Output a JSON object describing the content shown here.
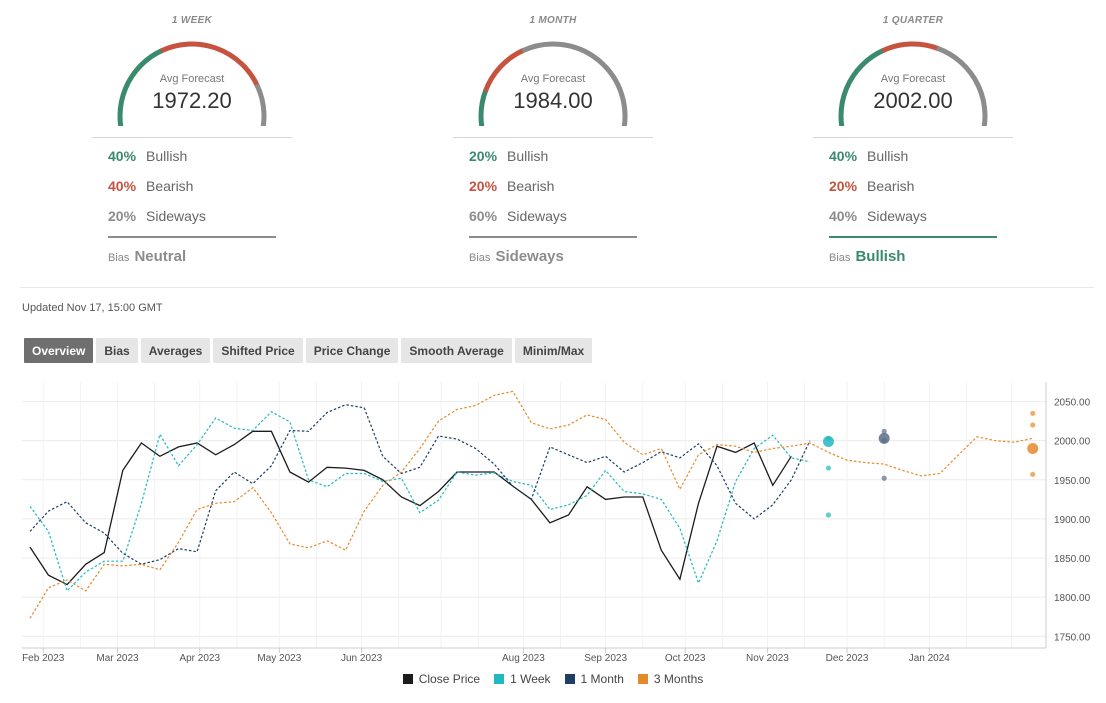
{
  "forecast_panels": [
    {
      "period": "1 WEEK",
      "avg_label": "Avg Forecast",
      "avg_value": "1972.20",
      "bullish_pct": "40%",
      "bullish_label": "Bullish",
      "bearish_pct": "40%",
      "bearish_label": "Bearish",
      "sideways_pct": "20%",
      "sideways_label": "Sideways",
      "bias_label": "Bias",
      "bias_value": "Neutral",
      "bias_color": "#8c8c8c",
      "gauge_fractions": {
        "bullish": 0.4,
        "bearish": 0.4,
        "sideways": 0.2
      }
    },
    {
      "period": "1 MONTH",
      "avg_label": "Avg Forecast",
      "avg_value": "1984.00",
      "bullish_pct": "20%",
      "bullish_label": "Bullish",
      "bearish_pct": "20%",
      "bearish_label": "Bearish",
      "sideways_pct": "60%",
      "sideways_label": "Sideways",
      "bias_label": "Bias",
      "bias_value": "Sideways",
      "bias_color": "#8c8c8c",
      "gauge_fractions": {
        "bullish": 0.2,
        "bearish": 0.2,
        "sideways": 0.6
      }
    },
    {
      "period": "1 QUARTER",
      "avg_label": "Avg Forecast",
      "avg_value": "2002.00",
      "bullish_pct": "40%",
      "bullish_label": "Bullish",
      "bearish_pct": "20%",
      "bearish_label": "Bearish",
      "sideways_pct": "40%",
      "sideways_label": "Sideways",
      "bias_label": "Bias",
      "bias_value": "Bullish",
      "bias_color": "#3a8a6e",
      "gauge_fractions": {
        "bullish": 0.4,
        "bearish": 0.2,
        "sideways": 0.4
      }
    }
  ],
  "colors": {
    "bullish": "#3a8a6e",
    "bearish": "#c5533f",
    "sideways": "#8c8c8c"
  },
  "updated": "Updated Nov 17, 15:00 GMT",
  "tabs": [
    {
      "label": "Overview",
      "active": true
    },
    {
      "label": "Bias",
      "active": false
    },
    {
      "label": "Averages",
      "active": false
    },
    {
      "label": "Shifted Price",
      "active": false
    },
    {
      "label": "Price Change",
      "active": false
    },
    {
      "label": "Smooth Average",
      "active": false
    },
    {
      "label": "Minim/Max",
      "active": false
    }
  ],
  "chart_data": {
    "type": "line",
    "x_tick_labels": [
      "Feb 2023",
      "Mar 2023",
      "Apr 2023",
      "May 2023",
      "Jun 2023",
      "Aug 2023",
      "Sep 2023",
      "Oct 2023",
      "Nov 2023",
      "Dec 2023",
      "Jan 2024"
    ],
    "y_ticks": [
      1750,
      1800,
      1850,
      1900,
      1950,
      2000,
      2050
    ],
    "ylim": [
      1735,
      2075
    ],
    "grid": true,
    "legend_position": "bottom",
    "series": [
      {
        "name": "Close Price",
        "color": "#1c1c1c",
        "dash": "solid",
        "points": [
          [
            "2023-01-27",
            1864
          ],
          [
            "2023-02-03",
            1828
          ],
          [
            "2023-02-10",
            1816
          ],
          [
            "2023-02-17",
            1842
          ],
          [
            "2023-02-24",
            1857
          ],
          [
            "2023-03-03",
            1962
          ],
          [
            "2023-03-10",
            1997
          ],
          [
            "2023-03-17",
            1980
          ],
          [
            "2023-03-24",
            1992
          ],
          [
            "2023-03-31",
            1997
          ],
          [
            "2023-04-07",
            1982
          ],
          [
            "2023-04-14",
            1995
          ],
          [
            "2023-04-21",
            2012
          ],
          [
            "2023-04-28",
            2012
          ],
          [
            "2023-05-05",
            1960
          ],
          [
            "2023-05-12",
            1947
          ],
          [
            "2023-05-19",
            1966
          ],
          [
            "2023-05-26",
            1965
          ],
          [
            "2023-06-02",
            1962
          ],
          [
            "2023-06-09",
            1950
          ],
          [
            "2023-06-16",
            1928
          ],
          [
            "2023-06-23",
            1917
          ],
          [
            "2023-06-30",
            1935
          ],
          [
            "2023-07-07",
            1960
          ],
          [
            "2023-07-14",
            1960
          ],
          [
            "2023-07-21",
            1960
          ],
          [
            "2023-07-28",
            1942
          ],
          [
            "2023-08-04",
            1925
          ],
          [
            "2023-08-11",
            1895
          ],
          [
            "2023-08-18",
            1905
          ],
          [
            "2023-08-25",
            1941
          ],
          [
            "2023-09-01",
            1925
          ],
          [
            "2023-09-08",
            1928
          ],
          [
            "2023-09-15",
            1928
          ],
          [
            "2023-09-22",
            1860
          ],
          [
            "2023-09-29",
            1823
          ],
          [
            "2023-10-06",
            1920
          ],
          [
            "2023-10-13",
            1993
          ],
          [
            "2023-10-20",
            1985
          ],
          [
            "2023-10-27",
            1997
          ],
          [
            "2023-11-03",
            1943
          ],
          [
            "2023-11-10",
            1980
          ]
        ]
      },
      {
        "name": "1 Week",
        "color": "#21b8c0",
        "dash": "dashed",
        "points": [
          [
            "2023-01-27",
            1916
          ],
          [
            "2023-02-03",
            1884
          ],
          [
            "2023-02-10",
            1808
          ],
          [
            "2023-02-17",
            1832
          ],
          [
            "2023-02-24",
            1846
          ],
          [
            "2023-03-03",
            1846
          ],
          [
            "2023-03-10",
            1920
          ],
          [
            "2023-03-17",
            2008
          ],
          [
            "2023-03-24",
            1968
          ],
          [
            "2023-03-31",
            1995
          ],
          [
            "2023-04-07",
            2029
          ],
          [
            "2023-04-14",
            2016
          ],
          [
            "2023-04-21",
            2013
          ],
          [
            "2023-04-28",
            2037
          ],
          [
            "2023-05-05",
            2024
          ],
          [
            "2023-05-12",
            1950
          ],
          [
            "2023-05-19",
            1941
          ],
          [
            "2023-05-26",
            1958
          ],
          [
            "2023-06-02",
            1958
          ],
          [
            "2023-06-09",
            1948
          ],
          [
            "2023-06-16",
            1952
          ],
          [
            "2023-06-23",
            1908
          ],
          [
            "2023-06-30",
            1924
          ],
          [
            "2023-07-07",
            1960
          ],
          [
            "2023-07-14",
            1956
          ],
          [
            "2023-07-21",
            1959
          ],
          [
            "2023-07-28",
            1948
          ],
          [
            "2023-08-04",
            1943
          ],
          [
            "2023-08-11",
            1912
          ],
          [
            "2023-08-18",
            1918
          ],
          [
            "2023-08-25",
            1930
          ],
          [
            "2023-09-01",
            1962
          ],
          [
            "2023-09-08",
            1935
          ],
          [
            "2023-09-15",
            1932
          ],
          [
            "2023-09-22",
            1925
          ],
          [
            "2023-09-29",
            1888
          ],
          [
            "2023-10-06",
            1818
          ],
          [
            "2023-10-13",
            1872
          ],
          [
            "2023-10-20",
            1948
          ],
          [
            "2023-10-27",
            1990
          ],
          [
            "2023-11-03",
            2007
          ],
          [
            "2023-11-10",
            1978
          ],
          [
            "2023-11-17",
            1973
          ]
        ]
      },
      {
        "name": "1 Month",
        "color": "#1f3e63",
        "dash": "dashed",
        "points": [
          [
            "2023-01-27",
            1884
          ],
          [
            "2023-02-03",
            1910
          ],
          [
            "2023-02-10",
            1922
          ],
          [
            "2023-02-17",
            1895
          ],
          [
            "2023-02-24",
            1882
          ],
          [
            "2023-03-03",
            1856
          ],
          [
            "2023-03-10",
            1842
          ],
          [
            "2023-03-17",
            1848
          ],
          [
            "2023-03-24",
            1862
          ],
          [
            "2023-03-31",
            1858
          ],
          [
            "2023-04-07",
            1936
          ],
          [
            "2023-04-14",
            1960
          ],
          [
            "2023-04-21",
            1945
          ],
          [
            "2023-04-28",
            1968
          ],
          [
            "2023-05-05",
            2013
          ],
          [
            "2023-05-12",
            2012
          ],
          [
            "2023-05-19",
            2036
          ],
          [
            "2023-05-26",
            2046
          ],
          [
            "2023-06-02",
            2042
          ],
          [
            "2023-06-09",
            1980
          ],
          [
            "2023-06-16",
            1958
          ],
          [
            "2023-06-23",
            1966
          ],
          [
            "2023-06-30",
            2006
          ],
          [
            "2023-07-07",
            2002
          ],
          [
            "2023-07-14",
            1990
          ],
          [
            "2023-07-21",
            1970
          ],
          [
            "2023-07-28",
            1942
          ],
          [
            "2023-08-04",
            1925
          ],
          [
            "2023-08-11",
            1992
          ],
          [
            "2023-08-18",
            1982
          ],
          [
            "2023-08-25",
            1972
          ],
          [
            "2023-09-01",
            1980
          ],
          [
            "2023-09-08",
            1960
          ],
          [
            "2023-09-15",
            1972
          ],
          [
            "2023-09-22",
            1986
          ],
          [
            "2023-09-29",
            1978
          ],
          [
            "2023-10-06",
            1996
          ],
          [
            "2023-10-13",
            1968
          ],
          [
            "2023-10-20",
            1920
          ],
          [
            "2023-10-27",
            1900
          ],
          [
            "2023-11-03",
            1918
          ],
          [
            "2023-11-10",
            1950
          ],
          [
            "2023-11-17",
            2000
          ]
        ]
      },
      {
        "name": "3 Months",
        "color": "#e58a2b",
        "dash": "dashed",
        "points": [
          [
            "2023-01-27",
            1773
          ],
          [
            "2023-02-03",
            1812
          ],
          [
            "2023-02-10",
            1822
          ],
          [
            "2023-02-17",
            1808
          ],
          [
            "2023-02-24",
            1842
          ],
          [
            "2023-03-03",
            1840
          ],
          [
            "2023-03-10",
            1842
          ],
          [
            "2023-03-17",
            1835
          ],
          [
            "2023-03-24",
            1870
          ],
          [
            "2023-03-31",
            1912
          ],
          [
            "2023-04-07",
            1920
          ],
          [
            "2023-04-14",
            1922
          ],
          [
            "2023-04-21",
            1940
          ],
          [
            "2023-04-28",
            1908
          ],
          [
            "2023-05-05",
            1868
          ],
          [
            "2023-05-12",
            1863
          ],
          [
            "2023-05-19",
            1872
          ],
          [
            "2023-05-26",
            1860
          ],
          [
            "2023-06-02",
            1910
          ],
          [
            "2023-06-09",
            1943
          ],
          [
            "2023-06-16",
            1960
          ],
          [
            "2023-06-23",
            1990
          ],
          [
            "2023-06-30",
            2025
          ],
          [
            "2023-07-07",
            2040
          ],
          [
            "2023-07-14",
            2045
          ],
          [
            "2023-07-21",
            2058
          ],
          [
            "2023-07-28",
            2063
          ],
          [
            "2023-08-04",
            2023
          ],
          [
            "2023-08-11",
            2015
          ],
          [
            "2023-08-18",
            2020
          ],
          [
            "2023-08-25",
            2033
          ],
          [
            "2023-09-01",
            2027
          ],
          [
            "2023-09-08",
            1998
          ],
          [
            "2023-09-15",
            1982
          ],
          [
            "2023-09-22",
            1990
          ],
          [
            "2023-09-29",
            1938
          ],
          [
            "2023-10-06",
            1982
          ],
          [
            "2023-10-13",
            1995
          ],
          [
            "2023-10-20",
            1993
          ],
          [
            "2023-10-27",
            1985
          ],
          [
            "2023-11-03",
            1990
          ],
          [
            "2023-11-10",
            1993
          ],
          [
            "2023-11-17",
            1997
          ],
          [
            "2023-11-24",
            1985
          ],
          [
            "2023-12-01",
            1975
          ],
          [
            "2023-12-08",
            1972
          ],
          [
            "2023-12-15",
            1970
          ],
          [
            "2023-12-22",
            1962
          ],
          [
            "2023-12-29",
            1955
          ],
          [
            "2024-01-05",
            1958
          ],
          [
            "2024-01-12",
            1982
          ],
          [
            "2024-01-19",
            2005
          ],
          [
            "2024-01-26",
            2000
          ],
          [
            "2024-02-02",
            1998
          ],
          [
            "2024-02-09",
            2003
          ]
        ]
      }
    ],
    "forecast_markers": [
      {
        "series": "1 Week",
        "color": "#21b8c0",
        "date": "2023-11-24",
        "avg": 1999,
        "points": [
          2003,
          1965,
          1905
        ]
      },
      {
        "series": "1 Month",
        "color": "#5a6d86",
        "date": "2023-12-15",
        "avg": 2003,
        "points": [
          2012,
          2000,
          1952
        ]
      },
      {
        "series": "3 Months",
        "color": "#e58a2b",
        "date": "2024-02-09",
        "avg": 1990,
        "points": [
          2035,
          2020,
          1957
        ]
      }
    ]
  },
  "legend": [
    {
      "label": "Close Price",
      "color": "#1c1c1c"
    },
    {
      "label": "1 Week",
      "color": "#21b8c0"
    },
    {
      "label": "1 Month",
      "color": "#1f3e63"
    },
    {
      "label": "3 Months",
      "color": "#e58a2b"
    }
  ]
}
